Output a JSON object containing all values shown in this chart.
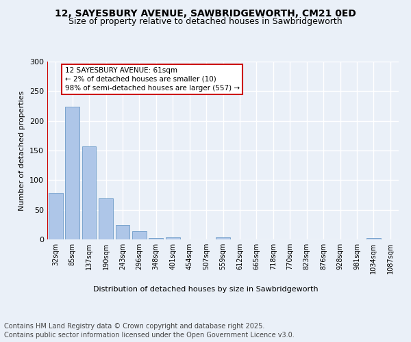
{
  "title": "12, SAYESBURY AVENUE, SAWBRIDGEWORTH, CM21 0ED",
  "subtitle": "Size of property relative to detached houses in Sawbridgeworth",
  "xlabel": "Distribution of detached houses by size in Sawbridgeworth",
  "ylabel": "Number of detached properties",
  "bar_color": "#aec6e8",
  "bar_edge_color": "#5a8fc0",
  "categories": [
    "32sqm",
    "85sqm",
    "137sqm",
    "190sqm",
    "243sqm",
    "296sqm",
    "348sqm",
    "401sqm",
    "454sqm",
    "507sqm",
    "559sqm",
    "612sqm",
    "665sqm",
    "718sqm",
    "770sqm",
    "823sqm",
    "876sqm",
    "928sqm",
    "981sqm",
    "1034sqm",
    "1087sqm"
  ],
  "values": [
    78,
    224,
    157,
    69,
    24,
    14,
    2,
    3,
    0,
    0,
    3,
    0,
    0,
    0,
    0,
    0,
    0,
    0,
    0,
    2,
    0
  ],
  "ylim": [
    0,
    300
  ],
  "yticks": [
    0,
    50,
    100,
    150,
    200,
    250,
    300
  ],
  "annotation_line1": "12 SAYESBURY AVENUE: 61sqm",
  "annotation_line2": "← 2% of detached houses are smaller (10)",
  "annotation_line3": "98% of semi-detached houses are larger (557) →",
  "vline_color": "#cc0000",
  "annotation_box_color": "#ffffff",
  "annotation_box_edge": "#cc0000",
  "footer_line1": "Contains HM Land Registry data © Crown copyright and database right 2025.",
  "footer_line2": "Contains public sector information licensed under the Open Government Licence v3.0.",
  "background_color": "#eaf0f8",
  "plot_bg_color": "#eaf0f8",
  "grid_color": "#ffffff",
  "title_fontsize": 10,
  "subtitle_fontsize": 9,
  "footer_fontsize": 7
}
